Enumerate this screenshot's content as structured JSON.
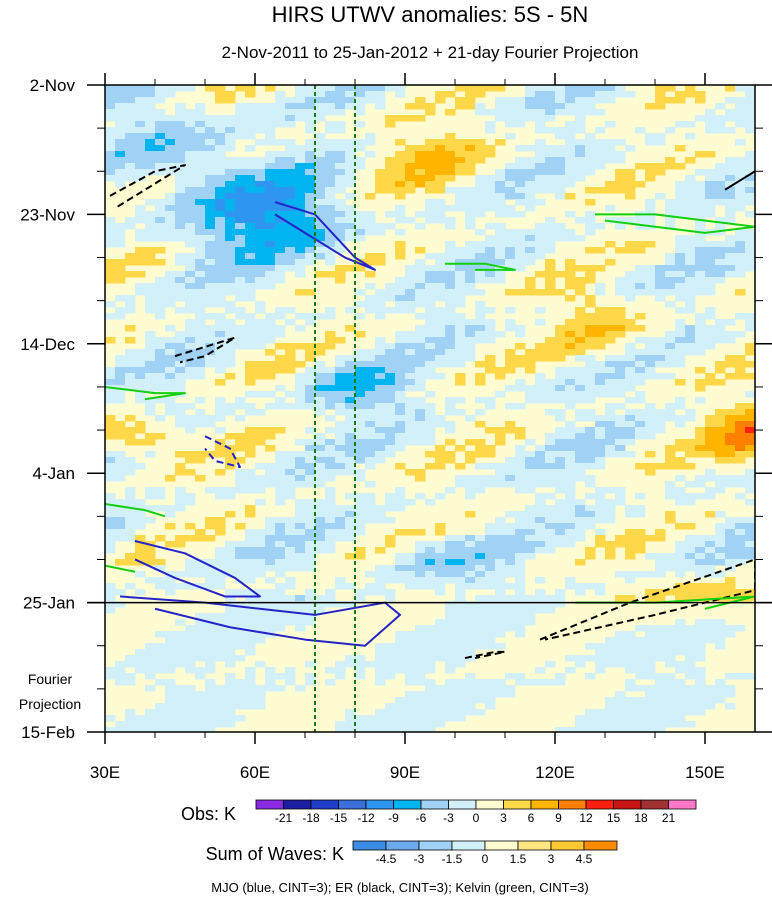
{
  "chart_data": {
    "type": "heatmap",
    "title": "HIRS UTWV anomalies: 5S - 5N",
    "subtitle": "2-Nov-2011 to 25-Jan-2012 + 21-day Fourier Projection",
    "x_axis": {
      "range": [
        30,
        160
      ],
      "ticks": [
        30,
        60,
        90,
        120,
        150
      ],
      "tick_labels": [
        "30E",
        "60E",
        "90E",
        "120E",
        "150E"
      ]
    },
    "y_axis": {
      "range_days": [
        0,
        105
      ],
      "ticks_days": [
        0,
        21,
        42,
        63,
        84,
        105
      ],
      "tick_labels": [
        "2-Nov",
        "23-Nov",
        "14-Dec",
        "4-Jan",
        "25-Jan",
        "15-Feb"
      ]
    },
    "projection_label": [
      "Fourier",
      "Projection"
    ],
    "projection_start_day": 84,
    "reference_longitudes": [
      72,
      80
    ],
    "obs_colorbar": {
      "title": "Obs: K",
      "levels": [
        "-21",
        "-18",
        "-15",
        "-12",
        "-9",
        "-6",
        "-3",
        "0",
        "3",
        "6",
        "9",
        "12",
        "15",
        "18",
        "21"
      ],
      "colors": [
        "#8a2be2",
        "#1e1ea0",
        "#1f3fc8",
        "#3a6ed8",
        "#2e96f0",
        "#00b4f0",
        "#a0d2f5",
        "#d2f0fa",
        "#fffcd2",
        "#ffd84a",
        "#ffb400",
        "#ff8000",
        "#ff2010",
        "#c81414",
        "#a03232",
        "#ff78c8"
      ]
    },
    "waves_colorbar": {
      "title": "Sum of Waves: K",
      "levels": [
        "-4.5",
        "-3",
        "-1.5",
        "0",
        "1.5",
        "3",
        "4.5"
      ],
      "colors": [
        "#3a8ee6",
        "#6eaaf0",
        "#a0d2f5",
        "#d2f0fa",
        "#fffcd2",
        "#ffe680",
        "#ffc832",
        "#ff8c00"
      ]
    },
    "wave_contours": [
      {
        "type": "MJO",
        "color": "#2424c8",
        "style": "solid",
        "points": [
          [
            64,
            19
          ],
          [
            72,
            21
          ],
          [
            80,
            28
          ],
          [
            84,
            30
          ],
          [
            78,
            28
          ],
          [
            70,
            24
          ],
          [
            64,
            21
          ]
        ]
      },
      {
        "type": "MJO",
        "color": "#2424c8",
        "style": "solid",
        "points": [
          [
            36,
            74
          ],
          [
            46,
            76
          ],
          [
            56,
            80
          ],
          [
            61,
            83
          ],
          [
            54,
            83
          ],
          [
            44,
            80
          ],
          [
            36,
            77
          ]
        ]
      },
      {
        "type": "MJO",
        "color": "#2424c8",
        "style": "solid",
        "points": [
          [
            33,
            83
          ],
          [
            50,
            84
          ],
          [
            72,
            86
          ],
          [
            86,
            84
          ],
          [
            89,
            86
          ],
          [
            82,
            91
          ],
          [
            70,
            90
          ],
          [
            55,
            88
          ],
          [
            40,
            85
          ]
        ]
      },
      {
        "type": "MJO",
        "color": "#2424c8",
        "style": "dashed",
        "points": [
          [
            50,
            57
          ],
          [
            55,
            59
          ],
          [
            57,
            62
          ],
          [
            52,
            61
          ],
          [
            50,
            59
          ]
        ]
      },
      {
        "type": "ER",
        "color": "#000000",
        "style": "dashed",
        "points": [
          [
            31,
            18
          ],
          [
            40,
            14
          ],
          [
            46,
            13
          ],
          [
            40,
            16
          ],
          [
            32,
            20
          ]
        ]
      },
      {
        "type": "ER",
        "color": "#000000",
        "style": "dashed",
        "points": [
          [
            44,
            44
          ],
          [
            52,
            42
          ],
          [
            56,
            41
          ],
          [
            50,
            44
          ],
          [
            45,
            45
          ]
        ]
      },
      {
        "type": "ER",
        "color": "#000000",
        "style": "dashed",
        "points": [
          [
            117,
            90
          ],
          [
            135,
            84
          ],
          [
            160,
            77
          ],
          [
            160,
            82
          ],
          [
            140,
            86
          ],
          [
            118,
            90
          ]
        ]
      },
      {
        "type": "ER",
        "color": "#000000",
        "style": "dashed",
        "points": [
          [
            102,
            93
          ],
          [
            108,
            92
          ],
          [
            110,
            92
          ],
          [
            104,
            93
          ]
        ]
      },
      {
        "type": "ER",
        "color": "#000000",
        "style": "solid",
        "points": [
          [
            154,
            17
          ],
          [
            158,
            15
          ],
          [
            160,
            14
          ]
        ]
      },
      {
        "type": "Kelvin",
        "color": "#10d010",
        "style": "solid",
        "points": [
          [
            128,
            21
          ],
          [
            140,
            21
          ],
          [
            160,
            23
          ],
          [
            150,
            24
          ],
          [
            130,
            22
          ]
        ]
      },
      {
        "type": "Kelvin",
        "color": "#10d010",
        "style": "solid",
        "points": [
          [
            98,
            29
          ],
          [
            106,
            29
          ],
          [
            112,
            30
          ],
          [
            104,
            30
          ]
        ]
      },
      {
        "type": "Kelvin",
        "color": "#10d010",
        "style": "solid",
        "points": [
          [
            30,
            49
          ],
          [
            40,
            50
          ],
          [
            46,
            50
          ],
          [
            38,
            51
          ]
        ]
      },
      {
        "type": "Kelvin",
        "color": "#10d010",
        "style": "solid",
        "points": [
          [
            30,
            68
          ],
          [
            38,
            69
          ],
          [
            42,
            70
          ]
        ]
      },
      {
        "type": "Kelvin",
        "color": "#10d010",
        "style": "solid",
        "points": [
          [
            30,
            78
          ],
          [
            36,
            79
          ]
        ]
      },
      {
        "type": "Kelvin",
        "color": "#10d010",
        "style": "solid",
        "points": [
          [
            124,
            84
          ],
          [
            140,
            84
          ],
          [
            160,
            83
          ],
          [
            150,
            85
          ]
        ]
      }
    ],
    "footnote": "MJO (blue, CINT=3); ER (black, CINT=3); Kelvin (green, CINT=3)"
  }
}
